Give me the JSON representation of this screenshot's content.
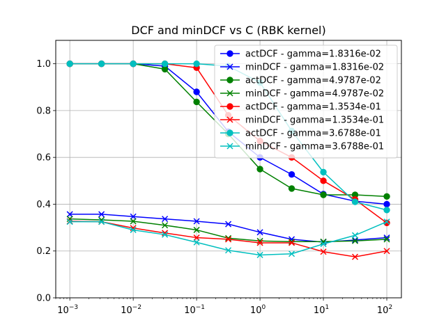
{
  "chart_data": {
    "type": "line",
    "title": "DCF and minDCF vs C (RBK kernel)",
    "xscale": "log",
    "xlim": [
      0.0006,
      170
    ],
    "ylim": [
      0.0,
      1.1
    ],
    "x_ticks": [
      {
        "value": 0.001,
        "mantissa": "10",
        "exp": "−3"
      },
      {
        "value": 0.01,
        "mantissa": "10",
        "exp": "−2"
      },
      {
        "value": 0.1,
        "mantissa": "10",
        "exp": "−1"
      },
      {
        "value": 1,
        "mantissa": "10",
        "exp": "0"
      },
      {
        "value": 10,
        "mantissa": "10",
        "exp": "1"
      },
      {
        "value": 100,
        "mantissa": "10",
        "exp": "2"
      }
    ],
    "y_ticks": [
      {
        "value": 0.0,
        "label": "0.0"
      },
      {
        "value": 0.2,
        "label": "0.2"
      },
      {
        "value": 0.4,
        "label": "0.4"
      },
      {
        "value": 0.6,
        "label": "0.6"
      },
      {
        "value": 0.8,
        "label": "0.8"
      },
      {
        "value": 1.0,
        "label": "1.0"
      }
    ],
    "grid": true,
    "legend_position": "top-right",
    "x": [
      0.001,
      0.00316,
      0.01,
      0.0316,
      0.1,
      0.316,
      1,
      3.16,
      10,
      31.6,
      100
    ],
    "series": [
      {
        "name": "actDCF - gamma=1.8316e-02",
        "color": "#0000ff",
        "marker": "circle",
        "values": [
          1.0,
          1.0,
          1.0,
          0.99,
          0.88,
          0.71,
          0.6,
          0.527,
          0.443,
          0.413,
          0.4
        ]
      },
      {
        "name": "minDCF - gamma=1.8316e-02",
        "color": "#0000ff",
        "marker": "x",
        "values": [
          0.357,
          0.357,
          0.347,
          0.337,
          0.327,
          0.315,
          0.28,
          0.25,
          0.238,
          0.247,
          0.257
        ]
      },
      {
        "name": "actDCF - gamma=4.9787e-02",
        "color": "#008000",
        "marker": "circle",
        "values": [
          1.0,
          1.0,
          1.0,
          0.977,
          0.837,
          0.7,
          0.55,
          0.467,
          0.44,
          0.44,
          0.433
        ]
      },
      {
        "name": "minDCF - gamma=4.9787e-02",
        "color": "#008000",
        "marker": "x",
        "values": [
          0.337,
          0.333,
          0.327,
          0.31,
          0.29,
          0.255,
          0.243,
          0.24,
          0.24,
          0.243,
          0.25
        ]
      },
      {
        "name": "actDCF - gamma=1.3534e-01",
        "color": "#ff0000",
        "marker": "circle",
        "values": [
          1.0,
          1.0,
          1.0,
          1.0,
          0.983,
          0.78,
          0.67,
          0.6,
          0.5,
          0.42,
          0.32
        ]
      },
      {
        "name": "minDCF - gamma=1.3534e-01",
        "color": "#ff0000",
        "marker": "x",
        "values": [
          0.327,
          0.325,
          0.298,
          0.277,
          0.257,
          0.25,
          0.235,
          0.235,
          0.197,
          0.175,
          0.2
        ]
      },
      {
        "name": "actDCF - gamma=3.6788e-01",
        "color": "#00bfbf",
        "marker": "circle",
        "values": [
          1.0,
          1.0,
          1.0,
          1.0,
          1.0,
          0.99,
          0.92,
          0.713,
          0.537,
          0.41,
          0.375
        ]
      },
      {
        "name": "minDCF - gamma=3.6788e-01",
        "color": "#00bfbf",
        "marker": "x",
        "values": [
          0.325,
          0.325,
          0.29,
          0.27,
          0.237,
          0.203,
          0.183,
          0.188,
          0.23,
          0.267,
          0.325
        ]
      }
    ]
  }
}
